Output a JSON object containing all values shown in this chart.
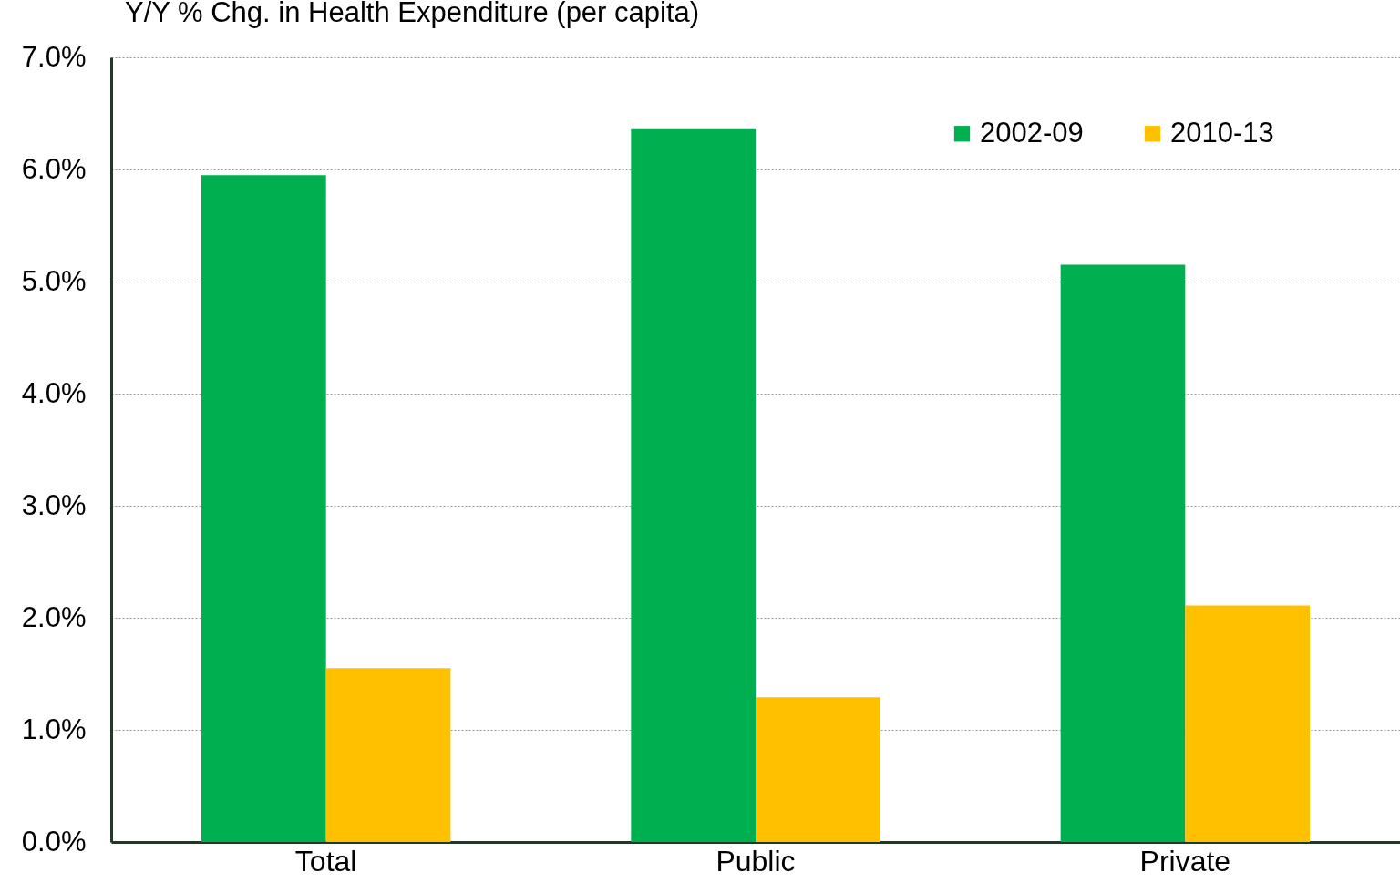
{
  "chart_data": {
    "type": "bar",
    "title": "Y/Y % Chg. in Health Expenditure (per capita)",
    "categories": [
      "Total",
      "Public",
      "Private"
    ],
    "series": [
      {
        "name": "2002-09",
        "color": "#00b050",
        "values": [
          5.95,
          6.36,
          5.15
        ]
      },
      {
        "name": "2010-13",
        "color": "#ffc000",
        "values": [
          1.55,
          1.29,
          2.11
        ]
      }
    ],
    "ylim": [
      0,
      7
    ],
    "yticks": [
      {
        "value": 0,
        "label": "0.0%"
      },
      {
        "value": 1,
        "label": "1.0%"
      },
      {
        "value": 2,
        "label": "2.0%"
      },
      {
        "value": 3,
        "label": "3.0%"
      },
      {
        "value": 4,
        "label": "4.0%"
      },
      {
        "value": 5,
        "label": "5.0%"
      },
      {
        "value": 6,
        "label": "6.0%"
      },
      {
        "value": 7,
        "label": "7.0%"
      }
    ],
    "grid": "y",
    "legend": "top right"
  }
}
